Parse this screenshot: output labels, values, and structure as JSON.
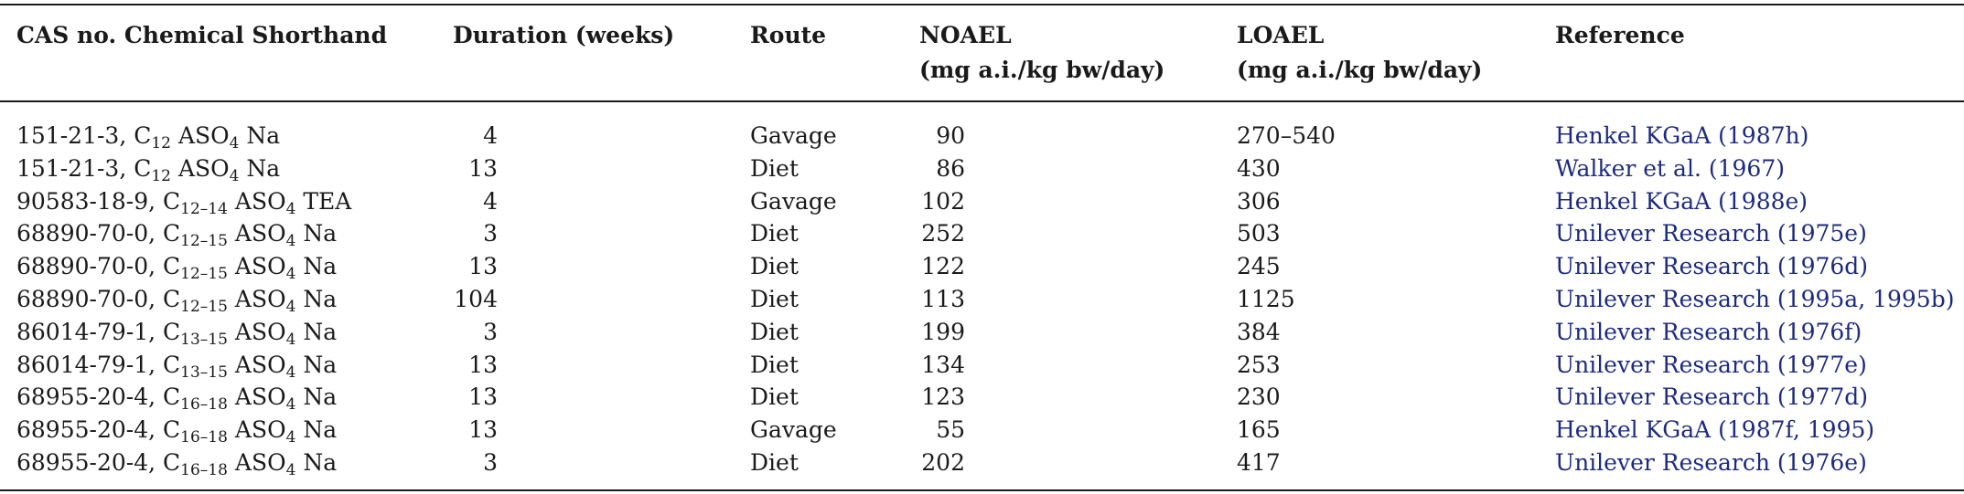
{
  "table": {
    "headers": {
      "cas_chem": "CAS no. Chemical Shorthand",
      "duration": "Duration (weeks)",
      "route": "Route",
      "noael_line1": "NOAEL",
      "noael_line2": "(mg a.i./kg bw/day)",
      "loael_line1": "LOAEL",
      "loael_line2": "(mg a.i./kg bw/day)",
      "reference": "Reference"
    },
    "rows": [
      {
        "cas": "151-21-3, C",
        "chain": "12",
        "tail": " ASO",
        "sub2": "4",
        "salt": " Na",
        "duration": "4",
        "route": "Gavage",
        "noael": "90",
        "loael": "270–540",
        "reference": "Henkel KGaA (1987h)"
      },
      {
        "cas": "151-21-3, C",
        "chain": "12",
        "tail": " ASO",
        "sub2": "4",
        "salt": " Na",
        "duration": "13",
        "route": "Diet",
        "noael": "86",
        "loael": "430",
        "reference": "Walker et al. (1967)"
      },
      {
        "cas": "90583-18-9, C",
        "chain": "12–14",
        "tail": " ASO",
        "sub2": "4",
        "salt": " TEA",
        "duration": "4",
        "route": "Gavage",
        "noael": "102",
        "loael": "306",
        "reference": "Henkel KGaA (1988e)"
      },
      {
        "cas": "68890-70-0, C",
        "chain": "12–15",
        "tail": " ASO",
        "sub2": "4",
        "salt": " Na",
        "duration": "3",
        "route": "Diet",
        "noael": "252",
        "loael": "503",
        "reference": "Unilever Research (1975e)"
      },
      {
        "cas": "68890-70-0, C",
        "chain": "12–15",
        "tail": " ASO",
        "sub2": "4",
        "salt": " Na",
        "duration": "13",
        "route": "Diet",
        "noael": "122",
        "loael": "245",
        "reference": "Unilever Research (1976d)"
      },
      {
        "cas": "68890-70-0, C",
        "chain": "12–15",
        "tail": " ASO",
        "sub2": "4",
        "salt": " Na",
        "duration": "104",
        "route": "Diet",
        "noael": "113",
        "loael": "1125",
        "reference": "Unilever Research (1995a, 1995b)"
      },
      {
        "cas": "86014-79-1, C",
        "chain": "13–15",
        "tail": " ASO",
        "sub2": "4",
        "salt": " Na",
        "duration": "3",
        "route": "Diet",
        "noael": "199",
        "loael": "384",
        "reference": "Unilever Research (1976f)"
      },
      {
        "cas": "86014-79-1, C",
        "chain": "13–15",
        "tail": " ASO",
        "sub2": "4",
        "salt": " Na",
        "duration": "13",
        "route": "Diet",
        "noael": "134",
        "loael": "253",
        "reference": "Unilever Research (1977e)"
      },
      {
        "cas": "68955-20-4, C",
        "chain": "16–18",
        "tail": " ASO",
        "sub2": "4",
        "salt": " Na",
        "duration": "13",
        "route": "Diet",
        "noael": "123",
        "loael": "230",
        "reference": "Unilever Research (1977d)"
      },
      {
        "cas": "68955-20-4, C",
        "chain": "16–18",
        "tail": " ASO",
        "sub2": "4",
        "salt": " Na",
        "duration": "13",
        "route": "Gavage",
        "noael": "55",
        "loael": "165",
        "reference": "Henkel KGaA (1987f, 1995)"
      },
      {
        "cas": "68955-20-4, C",
        "chain": "16–18",
        "tail": " ASO",
        "sub2": "4",
        "salt": " Na",
        "duration": "3",
        "route": "Diet",
        "noael": "202",
        "loael": "417",
        "reference": "Unilever Research (1976e)"
      }
    ]
  }
}
